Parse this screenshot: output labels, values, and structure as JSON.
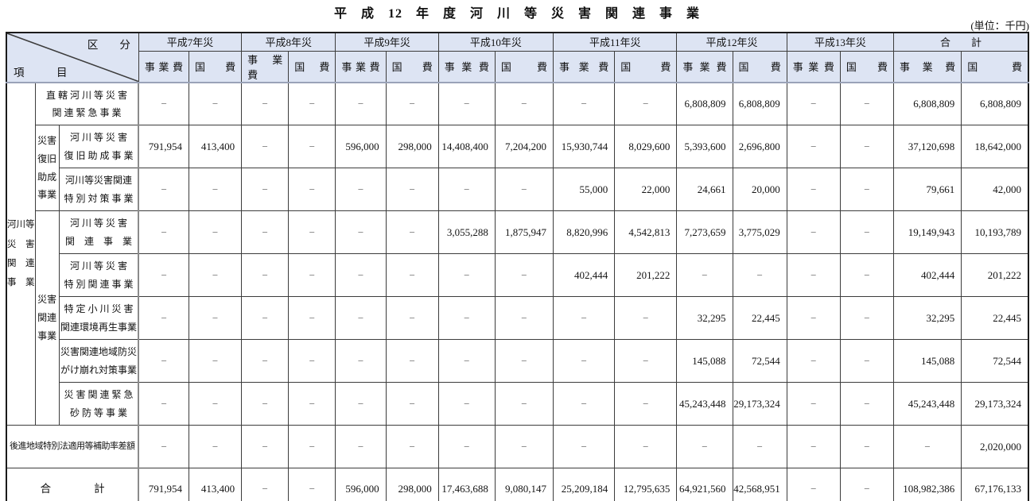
{
  "title": "平　成　12　年　度　河　川　等　災　害　関　連　事　業",
  "unit_note": "(単位：千円)",
  "header": {
    "corner": {
      "top_right": "区　　分",
      "bottom_left": "項　　　目"
    },
    "groups": [
      "平成7年災",
      "平成8年災",
      "平成9年災",
      "平成10年災",
      "平成11年災",
      "平成12年災",
      "平成13年災",
      "合　　計"
    ],
    "subcols": [
      "事 業 費",
      "国 費"
    ]
  },
  "side_groups": {
    "outer": "河川等\n災　害\n関　連\n事　業",
    "fukkyuu": "災害\n復旧\n助成\n事業",
    "kanren": "災害\n関連\n事業"
  },
  "rows": [
    {
      "label": "直 轄 河 川 等 災 害\n関 連 緊 急 事 業",
      "values": [
        "−",
        "−",
        "−",
        "−",
        "−",
        "−",
        "−",
        "−",
        "−",
        "−",
        "6,808,809",
        "6,808,809",
        "−",
        "−",
        "6,808,809",
        "6,808,809"
      ]
    },
    {
      "label": "河 川 等 災 害\n復 旧 助 成 事 業",
      "values": [
        "791,954",
        "413,400",
        "−",
        "−",
        "596,000",
        "298,000",
        "14,408,400",
        "7,204,200",
        "15,930,744",
        "8,029,600",
        "5,393,600",
        "2,696,800",
        "−",
        "−",
        "37,120,698",
        "18,642,000"
      ]
    },
    {
      "label": "河川等災害関連\n特 別 対 策 事 業",
      "values": [
        "−",
        "−",
        "−",
        "−",
        "−",
        "−",
        "−",
        "−",
        "55,000",
        "22,000",
        "24,661",
        "20,000",
        "−",
        "−",
        "79,661",
        "42,000"
      ]
    },
    {
      "label": "河 川 等 災 害\n関　連　事　業",
      "values": [
        "−",
        "−",
        "−",
        "−",
        "−",
        "−",
        "3,055,288",
        "1,875,947",
        "8,820,996",
        "4,542,813",
        "7,273,659",
        "3,775,029",
        "−",
        "−",
        "19,149,943",
        "10,193,789"
      ]
    },
    {
      "label": "河 川 等 災 害\n特 別 関 連 事 業",
      "values": [
        "−",
        "−",
        "−",
        "−",
        "−",
        "−",
        "−",
        "−",
        "402,444",
        "201,222",
        "−",
        "−",
        "−",
        "−",
        "402,444",
        "201,222"
      ]
    },
    {
      "label": "特 定 小 川 災 害\n関連環境再生事業",
      "values": [
        "−",
        "−",
        "−",
        "−",
        "−",
        "−",
        "−",
        "−",
        "−",
        "−",
        "32,295",
        "22,445",
        "−",
        "−",
        "32,295",
        "22,445"
      ]
    },
    {
      "label": "災害関連地域防災\nがけ崩れ対策事業",
      "values": [
        "−",
        "−",
        "−",
        "−",
        "−",
        "−",
        "−",
        "−",
        "−",
        "−",
        "145,088",
        "72,544",
        "−",
        "−",
        "145,088",
        "72,544"
      ]
    },
    {
      "label": "災 害 関 連 緊 急\n砂 防 等 事 業",
      "values": [
        "−",
        "−",
        "−",
        "−",
        "−",
        "−",
        "−",
        "−",
        "−",
        "−",
        "45,243,448",
        "29,173,324",
        "−",
        "−",
        "45,243,448",
        "29,173,324"
      ]
    },
    {
      "label": "後進地域特別法適用等補助率差額",
      "values": [
        "−",
        "−",
        "−",
        "−",
        "−",
        "−",
        "−",
        "−",
        "−",
        "−",
        "−",
        "−",
        "−",
        "−",
        "−",
        "2,020,000"
      ]
    },
    {
      "label": "合　　　　計",
      "values": [
        "791,954",
        "413,400",
        "−",
        "−",
        "596,000",
        "298,000",
        "17,463,688",
        "9,080,147",
        "25,209,184",
        "12,795,635",
        "64,921,560",
        "42,568,951",
        "−",
        "−",
        "108,982,386",
        "67,176,133"
      ]
    }
  ]
}
